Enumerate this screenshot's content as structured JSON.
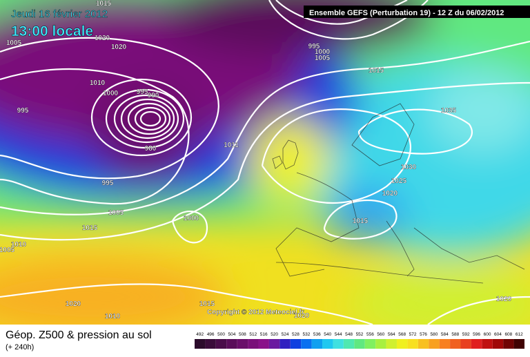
{
  "header": {
    "date": "Jeudi 16 février 2012",
    "time": "13:00 locale",
    "run": "Ensemble GEFS (Perturbation 19)  -  12 Z du 06/02/2012"
  },
  "map": {
    "copyright": "Copyright © 2012 Meteociel.fr",
    "isobar_labels": [
      "1015",
      "1020",
      "1020",
      "1005",
      "1010",
      "1000",
      "995",
      "995",
      "990",
      "980",
      "995",
      "1005",
      "1015",
      "1010",
      "1005",
      "1000",
      "1011",
      "1015",
      "995",
      "1000",
      "1005",
      "1035",
      "1030",
      "1025",
      "1020",
      "1015",
      "1020",
      "1010",
      "1015",
      "1020",
      "1020"
    ]
  },
  "footer": {
    "title": "Géop. Z500 & pression au sol",
    "lead": "(+ 240h)"
  },
  "legend": {
    "levels": [
      492,
      496,
      500,
      504,
      508,
      512,
      516,
      520,
      524,
      528,
      532,
      536,
      540,
      544,
      548,
      552,
      556,
      560,
      564,
      568,
      572,
      576,
      580,
      584,
      588,
      592,
      596,
      600,
      604,
      608,
      612
    ],
    "colors": [
      "#2b0b2b",
      "#3a0c3a",
      "#4a0d4a",
      "#5a0e5a",
      "#6a0f6a",
      "#7a107a",
      "#8a118a",
      "#6a1aa0",
      "#3020c0",
      "#1040e0",
      "#0a70f0",
      "#10a0f0",
      "#20c8f0",
      "#40e0e0",
      "#50e8b0",
      "#60e880",
      "#80f060",
      "#a8f040",
      "#d0f030",
      "#f0f020",
      "#f8e020",
      "#f8c020",
      "#f8a020",
      "#f88020",
      "#f06020",
      "#e84020",
      "#e02020",
      "#c01010",
      "#a00808",
      "#700404",
      "#400202"
    ]
  }
}
